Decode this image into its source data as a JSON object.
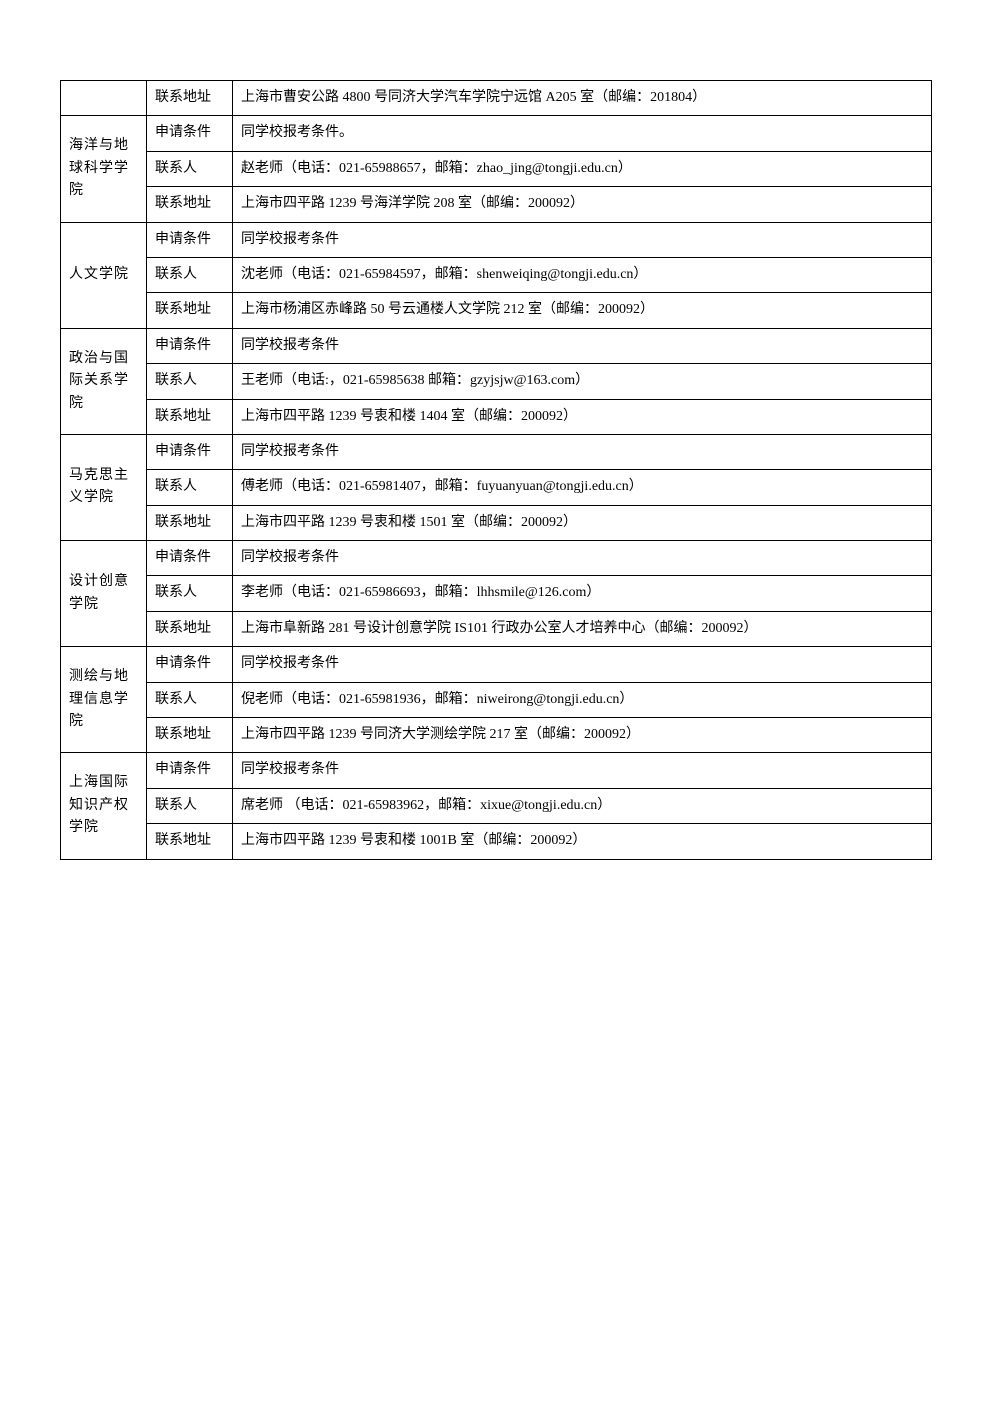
{
  "rows": [
    {
      "dept": "",
      "deptRowspan": 0,
      "field": "联系地址",
      "value": "上海市曹安公路 4800 号同济大学汽车学院宁远馆 A205 室（邮编：201804）"
    },
    {
      "dept": "海洋与地球科学学院",
      "deptRowspan": 3,
      "field": "申请条件",
      "value": "同学校报考条件。"
    },
    {
      "dept": "",
      "deptRowspan": 0,
      "field": "联系人",
      "value": "赵老师（电话：021-65988657，邮箱：zhao_jing@tongji.edu.cn）"
    },
    {
      "dept": "",
      "deptRowspan": 0,
      "field": "联系地址",
      "value": "上海市四平路 1239 号海洋学院 208 室（邮编：200092）"
    },
    {
      "dept": "人文学院",
      "deptRowspan": 3,
      "field": "申请条件",
      "value": "同学校报考条件"
    },
    {
      "dept": "",
      "deptRowspan": 0,
      "field": "联系人",
      "value": "沈老师（电话：021-65984597，邮箱：shenweiqing@tongji.edu.cn）"
    },
    {
      "dept": "",
      "deptRowspan": 0,
      "field": "联系地址",
      "value": "上海市杨浦区赤峰路 50 号云通楼人文学院 212 室（邮编：200092）"
    },
    {
      "dept": "政治与国际关系学院",
      "deptRowspan": 3,
      "field": "申请条件",
      "value": "同学校报考条件"
    },
    {
      "dept": "",
      "deptRowspan": 0,
      "field": "联系人",
      "value": "王老师（电话:，021-65985638 邮箱：gzyjsjw@163.com）"
    },
    {
      "dept": "",
      "deptRowspan": 0,
      "field": "联系地址",
      "value": "上海市四平路 1239 号衷和楼 1404 室（邮编：200092）"
    },
    {
      "dept": "马克思主义学院",
      "deptRowspan": 3,
      "field": "申请条件",
      "value": "同学校报考条件"
    },
    {
      "dept": "",
      "deptRowspan": 0,
      "field": "联系人",
      "value": "傅老师（电话：021-65981407，邮箱：fuyuanyuan@tongji.edu.cn）"
    },
    {
      "dept": "",
      "deptRowspan": 0,
      "field": "联系地址",
      "value": "上海市四平路 1239 号衷和楼 1501 室（邮编：200092）"
    },
    {
      "dept": "设计创意学院",
      "deptRowspan": 3,
      "field": "申请条件",
      "value": "同学校报考条件"
    },
    {
      "dept": "",
      "deptRowspan": 0,
      "field": "联系人",
      "value": "李老师（电话：021-65986693，邮箱：lhhsmile@126.com）"
    },
    {
      "dept": "",
      "deptRowspan": 0,
      "field": "联系地址",
      "value": "上海市阜新路 281 号设计创意学院 IS101 行政办公室人才培养中心（邮编：200092）"
    },
    {
      "dept": "测绘与地理信息学院",
      "deptRowspan": 3,
      "field": "申请条件",
      "value": "同学校报考条件"
    },
    {
      "dept": "",
      "deptRowspan": 0,
      "field": "联系人",
      "value": "倪老师（电话：021-65981936，邮箱：niweirong@tongji.edu.cn）"
    },
    {
      "dept": "",
      "deptRowspan": 0,
      "field": "联系地址",
      "value": "上海市四平路 1239 号同济大学测绘学院 217 室（邮编：200092）"
    },
    {
      "dept": "上海国际知识产权学院",
      "deptRowspan": 3,
      "field": "申请条件",
      "value": "同学校报考条件"
    },
    {
      "dept": "",
      "deptRowspan": 0,
      "field": "联系人",
      "value": "席老师 （电话：021-65983962，邮箱：xixue@tongji.edu.cn）"
    },
    {
      "dept": "",
      "deptRowspan": 0,
      "field": "联系地址",
      "value": "上海市四平路 1239 号衷和楼 1001B 室（邮编：200092）"
    }
  ]
}
